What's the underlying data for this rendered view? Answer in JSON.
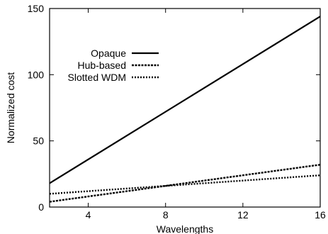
{
  "chart_data": {
    "type": "line",
    "title": "",
    "xlabel": "Wavelengths",
    "ylabel": "Normalized cost",
    "xlim": [
      2,
      16
    ],
    "ylim": [
      0,
      150
    ],
    "xticks": [
      4,
      8,
      12,
      16
    ],
    "yticks": [
      0,
      50,
      100,
      150
    ],
    "grid": false,
    "legend_position": "upper-left",
    "series": [
      {
        "name": "Opaque",
        "style": "solid",
        "color": "#000000",
        "x": [
          2,
          16
        ],
        "y": [
          18,
          144
        ]
      },
      {
        "name": "Hub-based",
        "style": "dense-dotted",
        "color": "#000000",
        "x": [
          2,
          16
        ],
        "y": [
          4,
          32
        ]
      },
      {
        "name": "Slotted WDM",
        "style": "sparse-dotted",
        "color": "#000000",
        "x": [
          2,
          16
        ],
        "y": [
          10,
          24
        ]
      }
    ]
  }
}
